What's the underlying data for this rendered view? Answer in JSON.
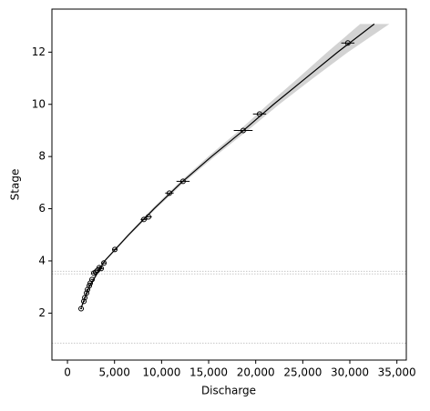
{
  "chart_data": {
    "type": "scatter",
    "xlabel": "Discharge",
    "ylabel": "Stage",
    "xlim": [
      -1650,
      36000
    ],
    "ylim": [
      0.2,
      13.65
    ],
    "xticks": [
      0,
      {
        "value": 5000,
        "label": "5,000"
      },
      {
        "value": 10000,
        "label": "10,000"
      },
      {
        "value": 15000,
        "label": "15,000"
      },
      {
        "value": 20000,
        "label": "20,000"
      },
      {
        "value": 25000,
        "label": "25,000"
      },
      {
        "value": 30000,
        "label": "30,000"
      },
      {
        "value": 35000,
        "label": "35,000"
      }
    ],
    "yticks": [
      2,
      4,
      6,
      8,
      10,
      12
    ],
    "series": [
      {
        "color": "#000000",
        "x": [
          1450,
          1740,
          1840,
          2030,
          2130,
          2320,
          2420,
          2610,
          2800,
          3000,
          3190,
          3380,
          3580,
          3870,
          5030,
          8120,
          8610,
          10830,
          12280,
          18670,
          20410,
          29790
        ],
        "values": [
          2.17,
          2.45,
          2.59,
          2.77,
          2.9,
          3.05,
          3.15,
          3.29,
          3.53,
          3.57,
          3.64,
          3.74,
          3.71,
          3.92,
          4.44,
          5.59,
          5.69,
          6.6,
          7.05,
          9.0,
          9.63,
          12.35
        ],
        "xerr": [
          100,
          100,
          100,
          120,
          120,
          130,
          130,
          140,
          150,
          160,
          170,
          180,
          190,
          200,
          250,
          350,
          350,
          450,
          700,
          1000,
          700,
          700
        ]
      }
    ],
    "curve": {
      "color": "#000000",
      "band_color": "#d3d3d3",
      "y": [
        2.2,
        3,
        4,
        5,
        6,
        7,
        8,
        9,
        10,
        11,
        12,
        13.08
      ],
      "x": [
        1450,
        2300,
        3950,
        6500,
        9200,
        12100,
        15300,
        18700,
        21900,
        25300,
        28700,
        32600
      ],
      "band_lower": [
        1400,
        2220,
        3850,
        6350,
        9000,
        11850,
        14950,
        18250,
        21300,
        24500,
        27600,
        31100
      ],
      "band_upper": [
        1500,
        2380,
        4050,
        6650,
        9400,
        12350,
        15650,
        19150,
        22500,
        26100,
        29800,
        34200
      ]
    },
    "hlines": [
      3.5,
      3.6,
      0.85
    ],
    "hline_color": "#c8c8c8"
  }
}
